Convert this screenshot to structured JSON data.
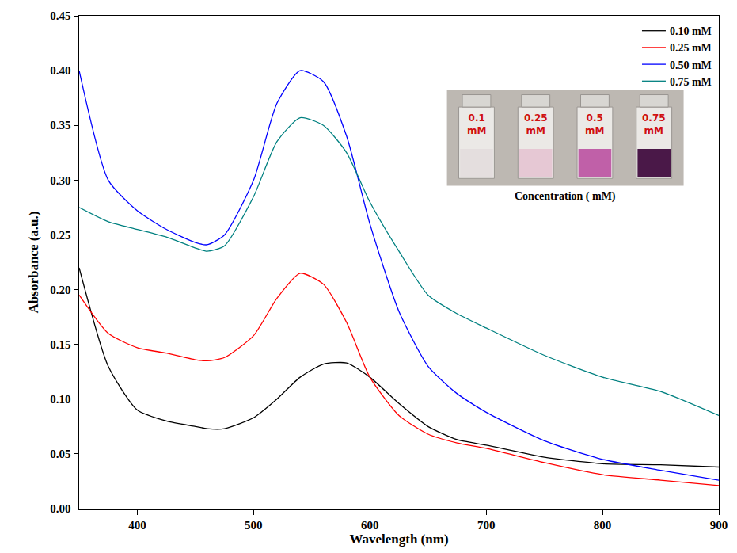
{
  "chart_data": {
    "type": "line",
    "x_label": "Wavelength (nm)",
    "y_label": "Absorbance (a.u.)",
    "x": [
      350,
      375,
      400,
      425,
      450,
      460,
      475,
      500,
      520,
      540,
      560,
      580,
      600,
      625,
      650,
      675,
      700,
      750,
      800,
      850,
      900
    ],
    "series": [
      {
        "name": "0.10 mM",
        "color": "#000000",
        "values": [
          0.22,
          0.13,
          0.09,
          0.08,
          0.075,
          0.073,
          0.073,
          0.083,
          0.1,
          0.12,
          0.132,
          0.133,
          0.12,
          0.096,
          0.075,
          0.063,
          0.058,
          0.047,
          0.041,
          0.04,
          0.038
        ]
      },
      {
        "name": "0.25 mM",
        "color": "#ff0000",
        "values": [
          0.195,
          0.16,
          0.147,
          0.142,
          0.136,
          0.135,
          0.138,
          0.158,
          0.192,
          0.215,
          0.205,
          0.17,
          0.12,
          0.085,
          0.068,
          0.06,
          0.055,
          0.042,
          0.031,
          0.026,
          0.021
        ]
      },
      {
        "name": "0.50 mM",
        "color": "#0000ff",
        "values": [
          0.4,
          0.3,
          0.272,
          0.255,
          0.243,
          0.241,
          0.25,
          0.3,
          0.37,
          0.4,
          0.39,
          0.34,
          0.26,
          0.18,
          0.13,
          0.105,
          0.088,
          0.062,
          0.045,
          0.035,
          0.026
        ]
      },
      {
        "name": "0.75 mM",
        "color": "#008080",
        "values": [
          0.275,
          0.262,
          0.255,
          0.248,
          0.238,
          0.235,
          0.24,
          0.285,
          0.335,
          0.357,
          0.35,
          0.325,
          0.28,
          0.235,
          0.195,
          0.178,
          0.165,
          0.14,
          0.12,
          0.107,
          0.085
        ]
      }
    ],
    "xlim": [
      350,
      900
    ],
    "xticks": [
      400,
      500,
      600,
      700,
      800,
      900
    ],
    "ylim": [
      0,
      0.45
    ],
    "yticks": [
      {
        "value": 0,
        "label": "0.00"
      },
      0.05,
      {
        "value": 0.1,
        "label": "0.10"
      },
      0.15,
      {
        "value": 0.2,
        "label": "0.20"
      },
      0.25,
      {
        "value": 0.3,
        "label": "0.30"
      },
      0.35,
      {
        "value": 0.4,
        "label": "0.40"
      },
      0.45
    ],
    "grid": false,
    "legend": "top right",
    "inset": {
      "caption": "Concentration ( mM)",
      "labels": [
        "0.1 mM",
        "0.25 mM",
        "0.5 mM",
        "0.75 mM"
      ],
      "colors": [
        "#e4dede",
        "#e6c8d4",
        "#c060a8",
        "#4a1848"
      ]
    }
  }
}
